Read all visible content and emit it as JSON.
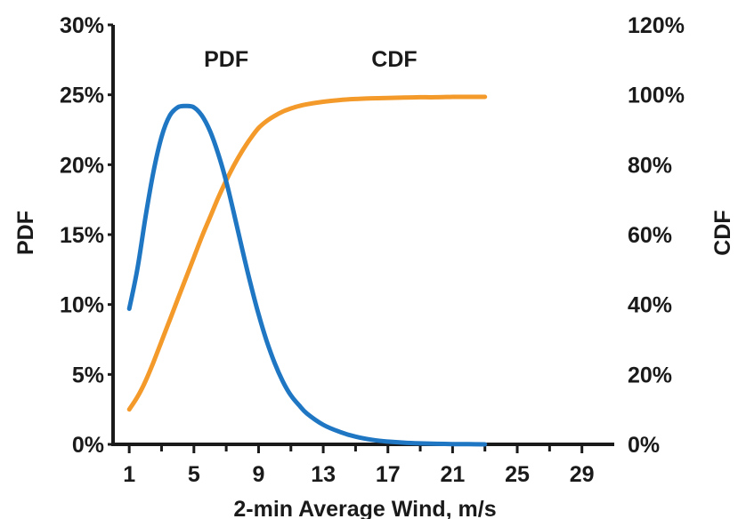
{
  "chart_data": {
    "type": "line",
    "xlabel": "2-min Average Wind, m/s",
    "ylabel_left": "PDF",
    "ylabel_right": "CDF",
    "xlim": [
      0,
      31
    ],
    "x_ticks": [
      1,
      5,
      9,
      13,
      17,
      21,
      25,
      29
    ],
    "x_minor_ticks": [
      3,
      7,
      11,
      15,
      19,
      23,
      27
    ],
    "y_left_lim": [
      0,
      30
    ],
    "y_left_ticks": [
      0,
      5,
      10,
      15,
      20,
      25,
      30
    ],
    "y_left_tick_labels": [
      "0%",
      "5%",
      "10%",
      "15%",
      "20%",
      "25%",
      "30%"
    ],
    "y_right_lim": [
      0,
      120
    ],
    "y_right_ticks": [
      0,
      20,
      40,
      60,
      80,
      100,
      120
    ],
    "y_right_tick_labels": [
      "0%",
      "20%",
      "40%",
      "60%",
      "80%",
      "100%",
      "120%"
    ],
    "grid": false,
    "series": [
      {
        "name": "PDF",
        "axis": "left",
        "color": "#1f77c4",
        "x": [
          1,
          1.5,
          2,
          2.5,
          3,
          3.5,
          4,
          4.5,
          5,
          5.5,
          6,
          6.5,
          7,
          7.5,
          8,
          8.5,
          9,
          9.5,
          10,
          10.5,
          11,
          11.5,
          12,
          13,
          14,
          15,
          16,
          17,
          18,
          19,
          20,
          21,
          22,
          23
        ],
        "values": [
          9.7,
          12.5,
          16.2,
          19.5,
          22.0,
          23.5,
          24.1,
          24.2,
          24.1,
          23.5,
          22.4,
          20.8,
          18.8,
          16.4,
          13.9,
          11.5,
          9.3,
          7.4,
          5.8,
          4.5,
          3.5,
          2.8,
          2.2,
          1.4,
          0.9,
          0.55,
          0.33,
          0.2,
          0.12,
          0.07,
          0.04,
          0.02,
          0.01,
          0.0
        ]
      },
      {
        "name": "CDF",
        "axis": "right",
        "color": "#f39a2b",
        "x": [
          1,
          1.5,
          2,
          2.5,
          3,
          3.5,
          4,
          4.5,
          5,
          5.5,
          6,
          6.5,
          7,
          7.5,
          8,
          8.5,
          9,
          9.5,
          10,
          10.5,
          11,
          11.5,
          12,
          13,
          14,
          15,
          16,
          17,
          18,
          19,
          20,
          21,
          22,
          23
        ],
        "values": [
          10,
          13.5,
          18,
          23.5,
          29.5,
          35.5,
          41.5,
          47.5,
          53.5,
          59.5,
          65,
          70.5,
          75.5,
          80,
          84,
          87.5,
          90.5,
          92.5,
          94,
          95.2,
          96.1,
          96.8,
          97.3,
          98.0,
          98.5,
          98.8,
          99.0,
          99.1,
          99.2,
          99.3,
          99.3,
          99.4,
          99.4,
          99.4
        ]
      }
    ],
    "annotations": [
      {
        "text": "PDF",
        "x": 7,
        "y_left": 27.6
      },
      {
        "text": "CDF",
        "x": 17.4,
        "y_left": 27.6
      }
    ]
  }
}
